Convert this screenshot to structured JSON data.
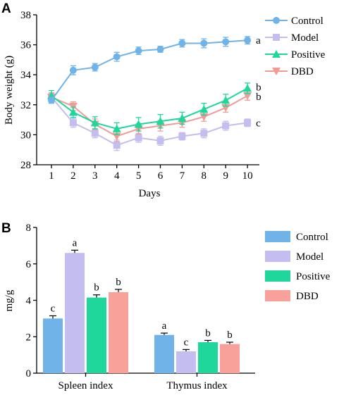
{
  "figure": {
    "panel_a_letter": "A",
    "panel_b_letter": "B"
  },
  "chart_data": [
    {
      "type": "line",
      "xlabel": "Days",
      "ylabel": "Body weight (g)",
      "x": [
        1,
        2,
        3,
        4,
        5,
        6,
        7,
        8,
        9,
        10
      ],
      "xticks": [
        "1",
        "2",
        "3",
        "4",
        "5",
        "6",
        "7",
        "8",
        "9",
        "10"
      ],
      "ylim": [
        28,
        38
      ],
      "yticks": [
        28,
        30,
        32,
        34,
        36,
        38
      ],
      "legend_position": "top-right",
      "series": [
        {
          "name": "Control",
          "color": "#6fb3e8",
          "marker": "circle",
          "values": [
            32.3,
            34.3,
            34.5,
            35.2,
            35.6,
            35.7,
            36.1,
            36.1,
            36.2,
            36.3
          ],
          "errors": [
            0.2,
            0.3,
            0.25,
            0.3,
            0.25,
            0.2,
            0.25,
            0.3,
            0.3,
            0.25
          ],
          "end_label": "a"
        },
        {
          "name": "Model",
          "color": "#c3bdf0",
          "marker": "square",
          "values": [
            32.5,
            30.8,
            30.1,
            29.3,
            29.8,
            29.6,
            29.9,
            30.1,
            30.6,
            30.8
          ],
          "errors": [
            0.25,
            0.3,
            0.3,
            0.35,
            0.3,
            0.3,
            0.25,
            0.3,
            0.3,
            0.25
          ],
          "end_label": "c"
        },
        {
          "name": "Positive",
          "color": "#1fd79b",
          "marker": "triangle",
          "values": [
            32.6,
            31.5,
            30.8,
            30.4,
            30.7,
            30.9,
            31.1,
            31.7,
            32.3,
            33.1
          ],
          "errors": [
            0.35,
            0.35,
            0.4,
            0.4,
            0.45,
            0.45,
            0.4,
            0.4,
            0.4,
            0.35
          ],
          "end_label": "b"
        },
        {
          "name": "DBD",
          "color": "#f29a96",
          "marker": "triangle-down",
          "values": [
            32.5,
            31.9,
            30.7,
            29.9,
            30.4,
            30.6,
            30.8,
            31.2,
            31.8,
            32.6
          ],
          "errors": [
            0.3,
            0.3,
            0.35,
            0.35,
            0.35,
            0.35,
            0.3,
            0.3,
            0.3,
            0.3
          ],
          "end_label": "b"
        }
      ]
    },
    {
      "type": "bar",
      "ylabel": "mg/g",
      "categories": [
        "Spleen index",
        "Thymus index"
      ],
      "ylim": [
        0,
        8
      ],
      "yticks": [
        0,
        2,
        4,
        6,
        8
      ],
      "legend_position": "top-right",
      "series": [
        {
          "name": "Control",
          "color": "#6fb3e8",
          "values": [
            3.0,
            2.1
          ],
          "errors": [
            0.15,
            0.1
          ],
          "labels": [
            "c",
            "a"
          ]
        },
        {
          "name": "Model",
          "color": "#c3bdf0",
          "values": [
            6.6,
            1.2
          ],
          "errors": [
            0.15,
            0.1
          ],
          "labels": [
            "a",
            "c"
          ]
        },
        {
          "name": "Positive",
          "color": "#1fd79b",
          "values": [
            4.15,
            1.7
          ],
          "errors": [
            0.15,
            0.1
          ],
          "labels": [
            "b",
            "b"
          ]
        },
        {
          "name": "DBD",
          "color": "#f8a19b",
          "values": [
            4.45,
            1.6
          ],
          "errors": [
            0.15,
            0.1
          ],
          "labels": [
            "b",
            "b"
          ]
        }
      ]
    }
  ]
}
